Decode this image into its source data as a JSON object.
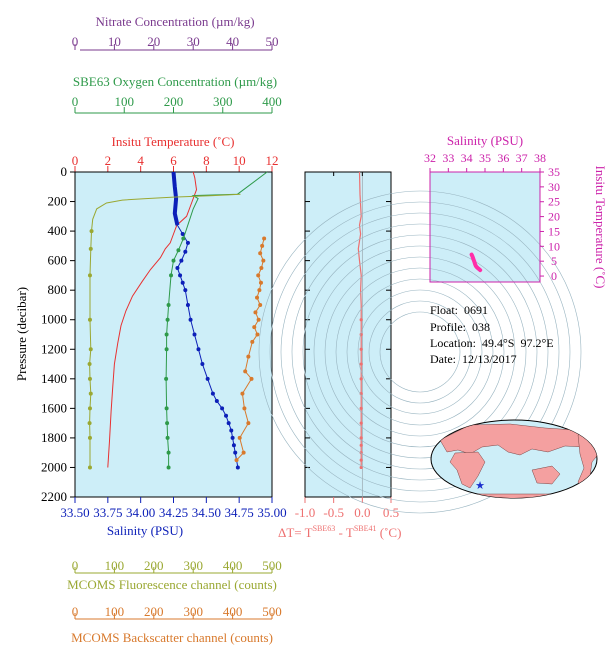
{
  "info": {
    "float": "Float:  0691",
    "profile": "Profile:  038",
    "location": "Location:  49.4°S  97.2°E",
    "date": "Date:  12/13/2017"
  },
  "colors": {
    "panel_bg": "#cdeef8",
    "temperature": "#e83030",
    "salinity": "#0c1fb8",
    "oxygen": "#2e9a4a",
    "nitrate": "#7a3a8e",
    "fluorescence": "#9aa832",
    "backscatter": "#d8792c",
    "delta_t": "#ee7070",
    "ts": "#ff2fa8",
    "salinity_axis_label": "#0c1fb8"
  },
  "chart_data": [
    {
      "type": "line",
      "name": "main-profile",
      "ylabel": "Pressure (decibar)",
      "ylim": [
        0,
        2200
      ],
      "yticks": [
        "0",
        "200",
        "400",
        "600",
        "800",
        "1000",
        "1200",
        "1400",
        "1600",
        "1800",
        "2000",
        "2200"
      ],
      "axes": {
        "nitrate": {
          "label": "Nitrate Concentration (µm/kg)",
          "lim": [
            0,
            50
          ],
          "ticks": [
            "0",
            "10",
            "20",
            "30",
            "40",
            "50"
          ]
        },
        "oxygen": {
          "label": "SBE63 Oxygen Concentration (µm/kg)",
          "lim": [
            0,
            400
          ],
          "ticks": [
            "0",
            "100",
            "200",
            "300",
            "400"
          ]
        },
        "temperature": {
          "label": "Insitu Temperature (˚C)",
          "lim": [
            0,
            12
          ],
          "ticks": [
            "0",
            "2",
            "4",
            "6",
            "8",
            "10",
            "12"
          ]
        },
        "salinity": {
          "label": "Salinity (PSU)",
          "lim": [
            33.5,
            35.0
          ],
          "ticks": [
            "33.50",
            "33.75",
            "34.00",
            "34.25",
            "34.50",
            "34.75",
            "35.00"
          ]
        },
        "fluorescence": {
          "label": "MCOMS Fluorescence channel (counts)",
          "lim": [
            0,
            500
          ],
          "ticks": [
            "0",
            "100",
            "200",
            "300",
            "400",
            "500"
          ]
        },
        "backscatter": {
          "label": "MCOMS Backscatter channel (counts)",
          "lim": [
            0,
            500
          ],
          "ticks": [
            "0",
            "100",
            "200",
            "300",
            "400",
            "500"
          ]
        }
      },
      "series": [
        {
          "key": "temperature",
          "x": [
            7.2,
            7.3,
            7.4,
            7.0,
            6.8,
            6.2,
            6.0,
            5.8,
            5.5,
            5.2,
            4.6,
            4.1,
            3.5,
            3.1,
            2.8,
            2.6,
            2.4,
            2.3,
            2.2,
            2.1,
            2.0
          ],
          "y": [
            0,
            40,
            120,
            240,
            300,
            360,
            420,
            480,
            520,
            580,
            660,
            740,
            840,
            940,
            1040,
            1160,
            1300,
            1450,
            1620,
            1820,
            2000
          ]
        },
        {
          "key": "salinity",
          "x": [
            34.25,
            34.26,
            34.27,
            34.26,
            34.28,
            34.32,
            34.36,
            34.34,
            34.31,
            34.28,
            34.3,
            34.32,
            34.34,
            34.36,
            34.38,
            34.41,
            34.44,
            34.47,
            34.51,
            34.55,
            34.58,
            34.62,
            34.65,
            34.67,
            34.69,
            34.7,
            34.71,
            34.72,
            34.74
          ],
          "y": [
            0,
            100,
            180,
            280,
            360,
            420,
            480,
            540,
            600,
            650,
            700,
            750,
            800,
            900,
            1000,
            1100,
            1200,
            1300,
            1400,
            1500,
            1550,
            1600,
            1650,
            1700,
            1750,
            1800,
            1850,
            1900,
            2000
          ]
        },
        {
          "key": "oxygen",
          "x": [
            390,
            330,
            240,
            250,
            240,
            230,
            220,
            210,
            200,
            195,
            190,
            188,
            186,
            186,
            185,
            186,
            187,
            188,
            190,
            190
          ],
          "y": [
            0,
            150,
            160,
            180,
            250,
            350,
            450,
            530,
            600,
            700,
            900,
            1000,
            1100,
            1200,
            1400,
            1600,
            1700,
            1800,
            1900,
            2000
          ]
        },
        {
          "key": "fluorescence",
          "x": [
            420,
            350,
            250,
            180,
            120,
            80,
            55,
            45,
            42,
            40,
            38,
            38,
            40,
            37,
            38,
            40,
            38,
            37,
            38,
            38
          ],
          "y": [
            150,
            160,
            170,
            180,
            190,
            210,
            250,
            320,
            400,
            520,
            700,
            1000,
            1200,
            1300,
            1400,
            1500,
            1600,
            1700,
            1800,
            2000
          ]
        },
        {
          "key": "backscatter",
          "x": [
            480,
            475,
            470,
            478,
            473,
            465,
            472,
            468,
            462,
            470,
            458,
            466,
            455,
            463,
            450,
            440,
            432,
            448,
            425,
            430,
            440,
            418,
            428,
            410
          ],
          "y": [
            450,
            500,
            550,
            600,
            650,
            700,
            750,
            800,
            850,
            900,
            950,
            1000,
            1050,
            1100,
            1150,
            1250,
            1350,
            1400,
            1500,
            1600,
            1700,
            1800,
            1900,
            1950
          ]
        }
      ]
    },
    {
      "type": "line",
      "name": "delta-t",
      "xlabel": "ΔT= T^SBE63 - T^SBE41 (˚C)",
      "xlim": [
        -1.0,
        0.5
      ],
      "xticks": [
        "-1.0",
        "-0.5",
        "0.0",
        "0.5"
      ],
      "ylim": [
        0,
        2200
      ],
      "series": [
        {
          "x": [
            -0.05,
            -0.04,
            -0.02,
            -0.05,
            -0.03,
            -0.07,
            -0.05,
            -0.02,
            -0.03,
            -0.02,
            -0.02,
            -0.02,
            -0.02,
            -0.02,
            -0.02,
            -0.02,
            -0.02,
            -0.02,
            -0.02,
            -0.02,
            -0.02,
            -0.02,
            -0.02
          ],
          "y": [
            0,
            150,
            300,
            360,
            420,
            520,
            600,
            700,
            800,
            900,
            1000,
            1100,
            1200,
            1300,
            1400,
            1500,
            1600,
            1700,
            1800,
            1850,
            1900,
            1950,
            2000
          ]
        }
      ]
    },
    {
      "type": "scatter",
      "name": "t-s-diagram",
      "title": "Salinity (PSU)",
      "xlim": [
        32,
        38
      ],
      "xticks": [
        "32",
        "33",
        "34",
        "35",
        "36",
        "37",
        "38"
      ],
      "ylabel": "Insitu Temperature (˚C)",
      "ylim": [
        -2,
        35
      ],
      "yticks": [
        "0",
        "5",
        "10",
        "15",
        "20",
        "25",
        "30",
        "35"
      ],
      "series": [
        {
          "x": [
            34.27,
            34.3,
            34.34,
            34.38,
            34.42,
            34.46,
            34.5,
            34.55,
            34.6,
            34.66,
            34.7,
            34.74
          ],
          "y": [
            7.2,
            6.8,
            6.2,
            5.5,
            4.8,
            4.0,
            3.4,
            3.0,
            2.7,
            2.4,
            2.2,
            2.0
          ]
        }
      ]
    }
  ]
}
